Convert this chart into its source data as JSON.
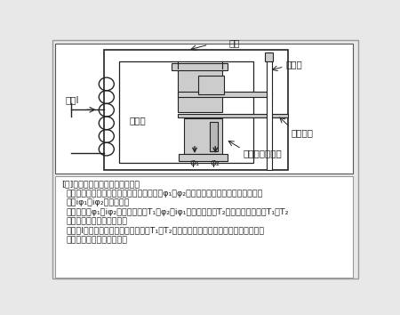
{
  "bg_color": "#e8e8e8",
  "line_color": "#222222",
  "white": "#ffffff",
  "gray_light": "#cccccc",
  "gray_mid": "#aaaaaa",
  "label_tetsushin": "鉄心",
  "label_denryu": "電流I",
  "label_coil": "コイル",
  "label_phi1": "φ₁",
  "label_phi2": "φ₂",
  "label_kaiten_jiku": "回転軸",
  "label_kaiten_enban": "回転円板",
  "label_kumatoricoil": "くま取りコイル",
  "note_title": "[注]　円板が回転するメカニズム",
  "note1a": "・誘導円板に位相の異なる二つの交番磁界φ₁、φ₂が作用するので、円板上に渦電流",
  "note1b": "　　iφ₁、iφ₂が流れる。",
  "note2a": "・このときφ₁とiφ₂によるトルクT₁、φ₂とiφ₁によるトルクT₂が発生するので、T₁－T₂",
  "note2b": "　　が回転トルクとなる。",
  "note3a": "・電流Iが大きくなると回転トルク（T₁－T₂）も大きくなり、円板が回転し継電器が",
  "note3b": "　　動作することとなる。"
}
